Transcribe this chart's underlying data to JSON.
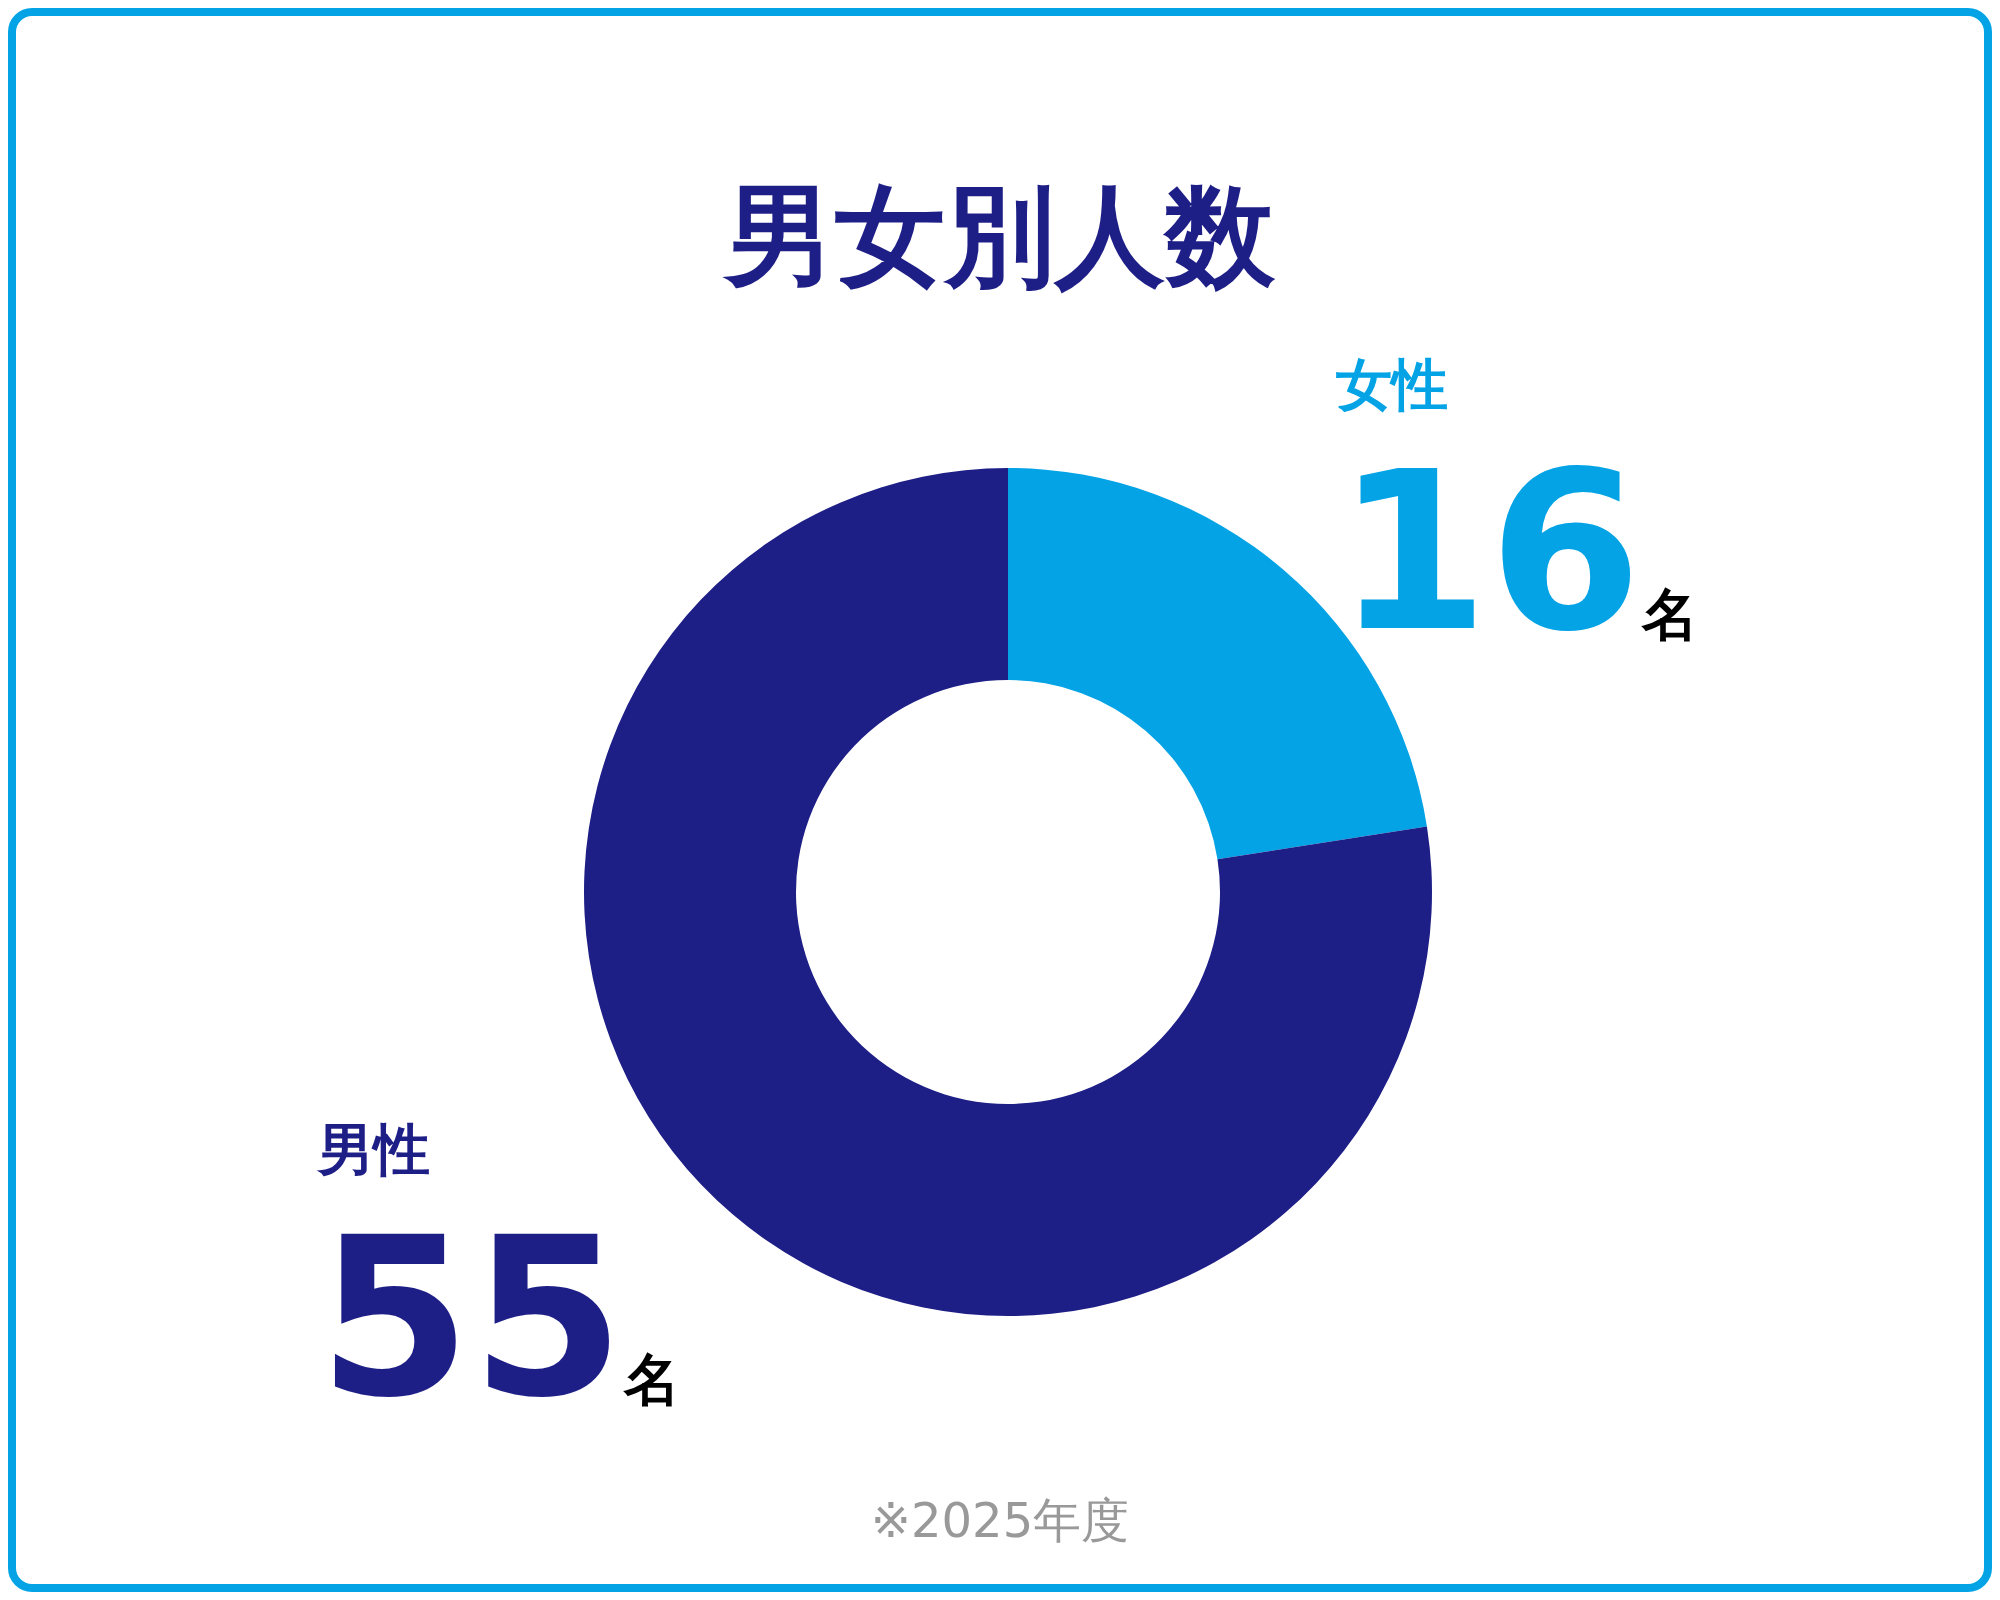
{
  "chart_data": {
    "type": "donut",
    "title": "男女別人数",
    "categories": [
      "女性",
      "男性"
    ],
    "values": [
      16,
      55
    ],
    "colors": [
      "#03a3e6",
      "#1e1e87"
    ],
    "value_labels": [
      "16名",
      "55名"
    ],
    "annotations": [
      "※2025年度"
    ]
  }
}
